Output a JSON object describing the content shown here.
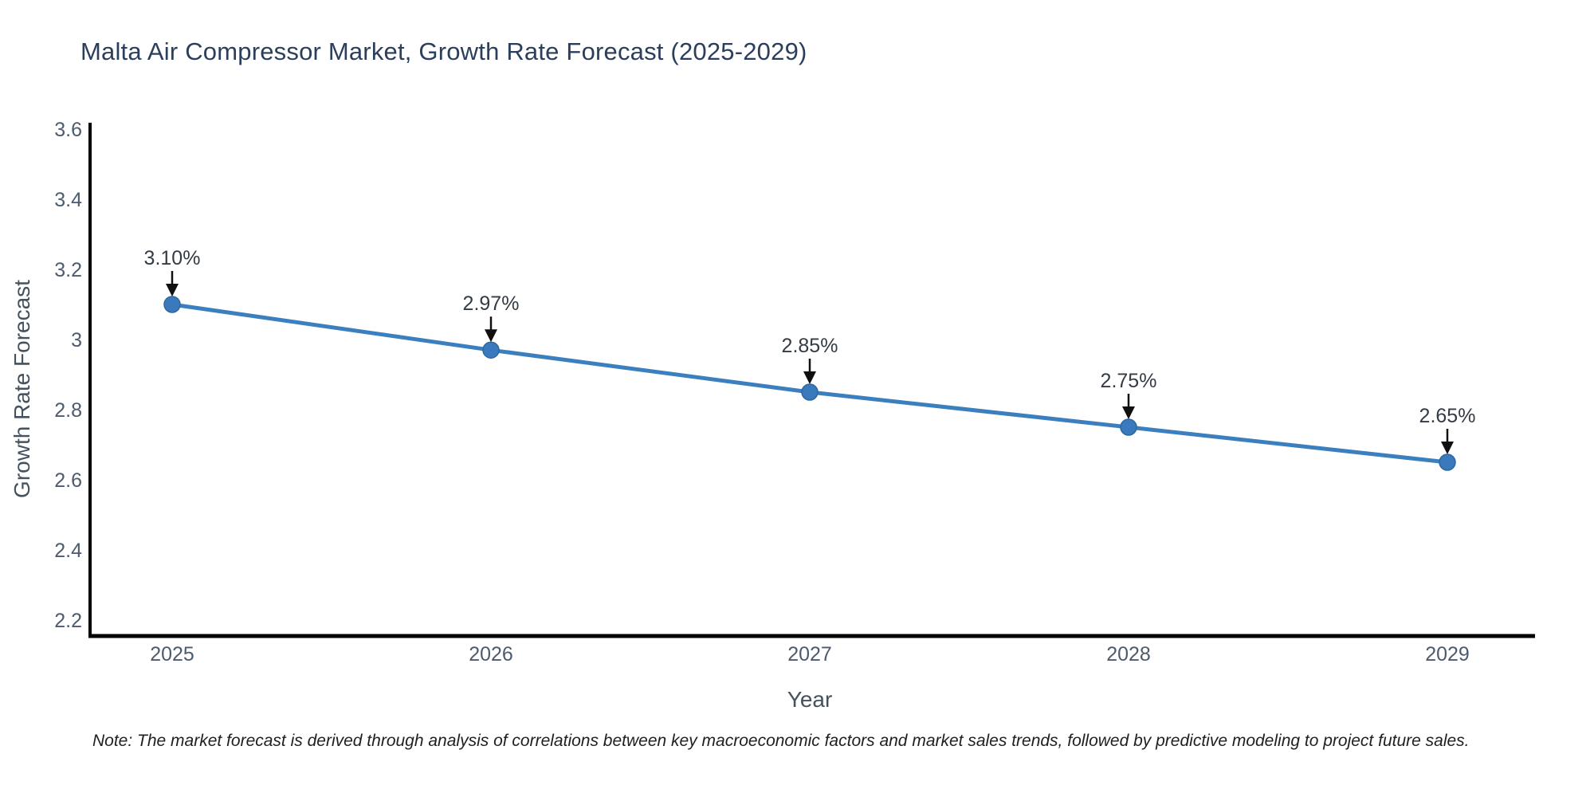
{
  "header": {
    "title": "Malta Air Compressor Market, Growth Rate Forecast (2025-2029)"
  },
  "footnote": {
    "text": "Note: The market forecast is derived through analysis of correlations between key macroeconomic factors and market sales trends, followed by predictive modeling to project future sales."
  },
  "chart_data": {
    "type": "line",
    "title": "Malta Air Compressor Market, Growth Rate Forecast (2025-2029)",
    "categories": [
      "2025",
      "2026",
      "2027",
      "2028",
      "2029"
    ],
    "values": [
      3.1,
      2.97,
      2.85,
      2.75,
      2.65
    ],
    "point_labels": [
      "3.10%",
      "2.97%",
      "2.85%",
      "2.75%",
      "2.65%"
    ],
    "xlabel": "Year",
    "ylabel": "Growth Rate Forecast",
    "ylim": [
      2.2,
      3.6
    ],
    "yticks": [
      2.2,
      2.4,
      2.6,
      2.8,
      3.0,
      3.2,
      3.4,
      3.6
    ],
    "ytick_labels": [
      "2.2",
      "2.4",
      "2.6",
      "2.8",
      "3",
      "3.2",
      "3.4",
      "3.6"
    ],
    "grid": false,
    "legend": "none",
    "colors": {
      "line": "#3c7fbe",
      "marker_fill": "#3a7abc",
      "marker_edge": "#2e689f",
      "axis_line": "#000000",
      "tick_label": "#4c5b6d",
      "annotation_text": "#333b45",
      "arrow": "#101010",
      "title": "#2b3e5c",
      "background": "#ffffff"
    }
  }
}
